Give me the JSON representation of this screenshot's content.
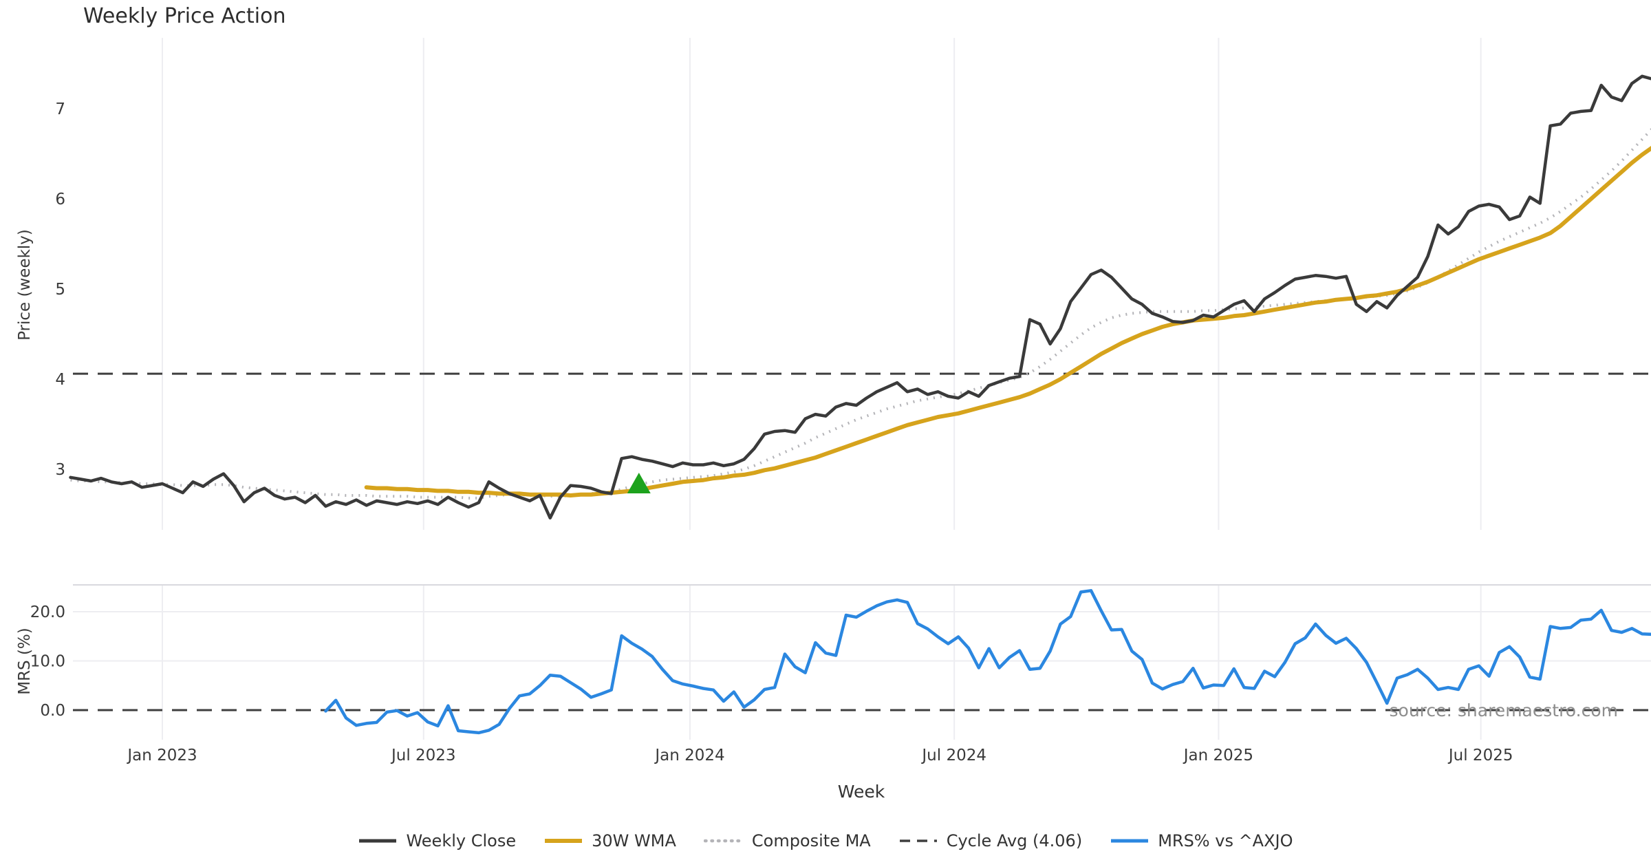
{
  "title": "Weekly Price Action",
  "source_note": "source: sharemaestro.com",
  "colors": {
    "close": "#3a3a3a",
    "wma": "#d6a31c",
    "composite": "#b4b4b8",
    "cycle_avg": "#3f3f3f",
    "mrs": "#2b87e0",
    "signal": "#1da21d",
    "grid": "#ededf1",
    "spine": "#d9d9de",
    "tick_text": "#3a3a3a"
  },
  "x_axis": {
    "label": "Week",
    "ticks": [
      {
        "label": "Jan 2023",
        "week": 0
      },
      {
        "label": "Jul 2023",
        "week": 25.6
      },
      {
        "label": "Jan 2024",
        "week": 51.7
      },
      {
        "label": "Jul 2024",
        "week": 77.6
      },
      {
        "label": "Jan 2025",
        "week": 103.5
      },
      {
        "label": "Jul 2025",
        "week": 129.2
      }
    ]
  },
  "legend_items": [
    {
      "label": "Weekly Close",
      "style": "solid",
      "color": "#3a3a3a",
      "width": 5
    },
    {
      "label": "30W WMA",
      "style": "solid",
      "color": "#d6a31c",
      "width": 6
    },
    {
      "label": "Composite MA",
      "style": "dotted",
      "color": "#b4b4b8",
      "width": 4.5
    },
    {
      "label": "Cycle Avg (4.06)",
      "style": "dashed",
      "color": "#3f3f3f",
      "width": 3.5
    },
    {
      "label": "MRS% vs ^AXJO",
      "style": "solid",
      "color": "#2b87e0",
      "width": 5
    }
  ],
  "chart_data": [
    {
      "type": "line",
      "panel": "price",
      "title": "Weekly Price Action",
      "xlabel": "Week",
      "ylabel": "Price (weekly)",
      "yticks": [
        {
          "label": "3",
          "value": 3
        },
        {
          "label": "4",
          "value": 4
        },
        {
          "label": "5",
          "value": 5
        },
        {
          "label": "6",
          "value": 6
        },
        {
          "label": "7",
          "value": 7
        }
      ],
      "ylim": [
        2.25,
        7.8
      ],
      "grid": "vertical-only",
      "cycle_avg": 4.06,
      "signal_marker": {
        "shape": "triangle-up",
        "week": 46.7,
        "price": 2.84,
        "color": "#1da21d"
      },
      "series": [
        {
          "name": "Weekly Close",
          "color": "#3a3a3a",
          "width": 4.5,
          "style": "solid",
          "start_week": -9,
          "values": [
            2.91,
            2.89,
            2.87,
            2.9,
            2.86,
            2.84,
            2.86,
            2.8,
            2.82,
            2.84,
            2.79,
            2.74,
            2.86,
            2.81,
            2.89,
            2.95,
            2.82,
            2.64,
            2.74,
            2.79,
            2.71,
            2.67,
            2.69,
            2.63,
            2.71,
            2.59,
            2.64,
            2.61,
            2.66,
            2.6,
            2.65,
            2.63,
            2.61,
            2.64,
            2.62,
            2.65,
            2.61,
            2.69,
            2.63,
            2.58,
            2.63,
            2.86,
            2.79,
            2.73,
            2.69,
            2.65,
            2.71,
            2.46,
            2.69,
            2.82,
            2.81,
            2.79,
            2.75,
            2.73,
            3.12,
            3.14,
            3.11,
            3.09,
            3.06,
            3.03,
            3.07,
            3.05,
            3.05,
            3.07,
            3.04,
            3.06,
            3.11,
            3.23,
            3.39,
            3.42,
            3.43,
            3.41,
            3.56,
            3.61,
            3.59,
            3.69,
            3.73,
            3.71,
            3.79,
            3.86,
            3.91,
            3.96,
            3.86,
            3.89,
            3.83,
            3.86,
            3.81,
            3.79,
            3.86,
            3.81,
            3.93,
            3.97,
            4.01,
            4.03,
            4.66,
            4.61,
            4.39,
            4.56,
            4.86,
            5.01,
            5.16,
            5.21,
            5.13,
            5.01,
            4.89,
            4.83,
            4.73,
            4.69,
            4.64,
            4.63,
            4.65,
            4.71,
            4.69,
            4.76,
            4.83,
            4.87,
            4.75,
            4.89,
            4.96,
            5.04,
            5.11,
            5.13,
            5.15,
            5.14,
            5.12,
            5.14,
            4.83,
            4.75,
            4.86,
            4.79,
            4.93,
            5.03,
            5.13,
            5.36,
            5.71,
            5.61,
            5.69,
            5.86,
            5.92,
            5.94,
            5.91,
            5.77,
            5.81,
            6.02,
            5.95,
            6.81,
            6.83,
            6.95,
            6.97,
            6.98,
            7.26,
            7.13,
            7.09,
            7.28,
            7.36,
            7.33
          ]
        },
        {
          "name": "30W WMA",
          "color": "#d6a31c",
          "width": 6,
          "style": "solid",
          "start_week": 20,
          "values": [
            2.8,
            2.79,
            2.79,
            2.78,
            2.78,
            2.77,
            2.77,
            2.76,
            2.76,
            2.75,
            2.75,
            2.74,
            2.74,
            2.73,
            2.73,
            2.73,
            2.72,
            2.72,
            2.72,
            2.72,
            2.71,
            2.72,
            2.72,
            2.73,
            2.74,
            2.75,
            2.76,
            2.78,
            2.8,
            2.82,
            2.84,
            2.86,
            2.87,
            2.88,
            2.9,
            2.91,
            2.93,
            2.94,
            2.96,
            2.99,
            3.01,
            3.04,
            3.07,
            3.1,
            3.13,
            3.17,
            3.21,
            3.25,
            3.29,
            3.33,
            3.37,
            3.41,
            3.45,
            3.49,
            3.52,
            3.55,
            3.58,
            3.6,
            3.62,
            3.65,
            3.68,
            3.71,
            3.74,
            3.77,
            3.8,
            3.84,
            3.89,
            3.94,
            4.0,
            4.07,
            4.14,
            4.21,
            4.28,
            4.34,
            4.4,
            4.45,
            4.5,
            4.54,
            4.58,
            4.61,
            4.63,
            4.65,
            4.66,
            4.67,
            4.68,
            4.7,
            4.71,
            4.73,
            4.75,
            4.77,
            4.79,
            4.81,
            4.83,
            4.85,
            4.86,
            4.88,
            4.89,
            4.9,
            4.92,
            4.93,
            4.95,
            4.97,
            5.0,
            5.04,
            5.08,
            5.13,
            5.18,
            5.23,
            5.28,
            5.33,
            5.37,
            5.41,
            5.45,
            5.49,
            5.53,
            5.57,
            5.62,
            5.7,
            5.8,
            5.9,
            6.0,
            6.1,
            6.2,
            6.3,
            6.4,
            6.49,
            6.57
          ]
        },
        {
          "name": "Composite MA",
          "color": "#b4b4b8",
          "width": 4,
          "style": "dotted",
          "start_week": -9,
          "values": [
            2.88,
            2.87,
            2.87,
            2.86,
            2.86,
            2.85,
            2.85,
            2.84,
            2.84,
            2.83,
            2.83,
            2.82,
            2.82,
            2.82,
            2.83,
            2.83,
            2.82,
            2.8,
            2.79,
            2.78,
            2.77,
            2.76,
            2.75,
            2.74,
            2.73,
            2.72,
            2.72,
            2.71,
            2.71,
            2.71,
            2.7,
            2.7,
            2.7,
            2.7,
            2.69,
            2.69,
            2.69,
            2.69,
            2.69,
            2.68,
            2.68,
            2.7,
            2.71,
            2.72,
            2.72,
            2.71,
            2.71,
            2.7,
            2.7,
            2.71,
            2.72,
            2.73,
            2.74,
            2.74,
            2.78,
            2.81,
            2.84,
            2.86,
            2.88,
            2.89,
            2.9,
            2.91,
            2.92,
            2.93,
            2.95,
            2.97,
            3.0,
            3.04,
            3.09,
            3.14,
            3.19,
            3.24,
            3.29,
            3.35,
            3.4,
            3.45,
            3.5,
            3.55,
            3.59,
            3.63,
            3.67,
            3.7,
            3.73,
            3.76,
            3.78,
            3.8,
            3.82,
            3.84,
            3.87,
            3.9,
            3.93,
            3.96,
            3.99,
            4.02,
            4.07,
            4.14,
            4.22,
            4.31,
            4.4,
            4.49,
            4.57,
            4.63,
            4.68,
            4.71,
            4.73,
            4.74,
            4.75,
            4.75,
            4.75,
            4.75,
            4.75,
            4.76,
            4.76,
            4.77,
            4.78,
            4.79,
            4.8,
            4.81,
            4.82,
            4.83,
            4.84,
            4.85,
            4.86,
            4.87,
            4.88,
            4.89,
            4.9,
            4.91,
            4.92,
            4.93,
            4.95,
            4.98,
            5.02,
            5.07,
            5.13,
            5.2,
            5.27,
            5.34,
            5.41,
            5.47,
            5.53,
            5.58,
            5.63,
            5.68,
            5.73,
            5.79,
            5.86,
            5.94,
            6.02,
            6.11,
            6.21,
            6.31,
            6.42,
            6.54,
            6.66,
            6.78
          ]
        }
      ]
    },
    {
      "type": "line",
      "panel": "mrs",
      "ylabel": "MRS (%)",
      "yticks": [
        {
          "label": "20.0",
          "value": 20
        },
        {
          "label": "10.0",
          "value": 10
        },
        {
          "label": "0.0",
          "value": 0
        }
      ],
      "ylim": [
        -6.5,
        25.5
      ],
      "grid": "horizontal-and-vertical",
      "zero_line": 0,
      "series": [
        {
          "name": "MRS% vs ^AXJO",
          "color": "#2b87e0",
          "width": 4.5,
          "style": "solid",
          "start_week": 16,
          "values": [
            -0.2,
            2.0,
            -1.6,
            -3.1,
            -2.7,
            -2.5,
            -0.4,
            -0.1,
            -1.2,
            -0.5,
            -2.4,
            -3.2,
            0.9,
            -4.2,
            -4.4,
            -4.6,
            -4.1,
            -2.9,
            0.3,
            2.9,
            3.3,
            5.0,
            7.1,
            6.9,
            5.6,
            4.3,
            2.6,
            3.3,
            4.1,
            15.1,
            13.6,
            12.4,
            10.9,
            8.3,
            6.0,
            5.3,
            4.9,
            4.4,
            4.1,
            1.8,
            3.7,
            0.6,
            2.1,
            4.2,
            4.6,
            11.4,
            8.8,
            7.6,
            13.7,
            11.6,
            11.1,
            19.3,
            18.9,
            20.1,
            21.2,
            22.0,
            22.4,
            21.9,
            17.6,
            16.5,
            14.9,
            13.5,
            14.9,
            12.6,
            8.6,
            12.5,
            8.6,
            10.7,
            12.1,
            8.3,
            8.5,
            12.0,
            17.5,
            19.0,
            24.0,
            24.3,
            20.2,
            16.3,
            16.4,
            12.0,
            10.3,
            5.5,
            4.3,
            5.2,
            5.8,
            8.5,
            4.5,
            5.1,
            5.0,
            8.4,
            4.6,
            4.4,
            7.9,
            6.8,
            9.7,
            13.5,
            14.7,
            17.5,
            15.2,
            13.6,
            14.6,
            12.5,
            9.7,
            5.6,
            1.4,
            6.5,
            7.2,
            8.3,
            6.5,
            4.2,
            4.6,
            4.2,
            8.3,
            9.0,
            6.9,
            11.7,
            12.9,
            10.8,
            6.7,
            6.3,
            17.0,
            16.6,
            16.8,
            18.3,
            18.5,
            20.3,
            16.2,
            15.8,
            16.6,
            15.5,
            15.4
          ]
        }
      ]
    }
  ]
}
